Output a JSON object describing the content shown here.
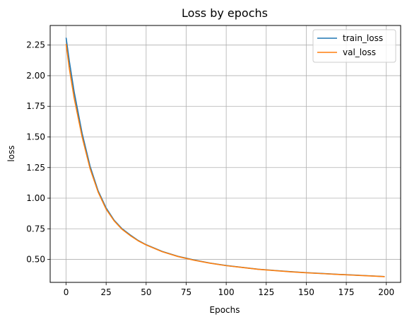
{
  "chart_data": {
    "type": "line",
    "title": "Loss by epochs",
    "xlabel": "Epochs",
    "ylabel": "loss",
    "xlim": [
      -9.95,
      208.95
    ],
    "ylim": [
      0.3125,
      2.41
    ],
    "x_ticks": [
      0,
      25,
      50,
      75,
      100,
      125,
      150,
      175,
      200
    ],
    "x_tick_labels": [
      "0",
      "25",
      "50",
      "75",
      "100",
      "125",
      "150",
      "175",
      "200"
    ],
    "y_ticks": [
      0.5,
      0.75,
      1.0,
      1.25,
      1.5,
      1.75,
      2.0,
      2.25
    ],
    "y_tick_labels": [
      "0.50",
      "0.75",
      "1.00",
      "1.25",
      "1.50",
      "1.75",
      "2.00",
      "2.25"
    ],
    "grid": true,
    "legend_position": "top-right",
    "series": [
      {
        "name": "train_loss",
        "color": "#1f77b4",
        "x": [
          0,
          2,
          5,
          10,
          15,
          20,
          25,
          30,
          35,
          40,
          45,
          50,
          60,
          70,
          75,
          80,
          90,
          100,
          110,
          120,
          125,
          130,
          140,
          150,
          160,
          170,
          175,
          180,
          190,
          199
        ],
        "values": [
          2.31,
          2.12,
          1.87,
          1.53,
          1.26,
          1.06,
          0.92,
          0.82,
          0.75,
          0.7,
          0.655,
          0.62,
          0.565,
          0.525,
          0.51,
          0.495,
          0.47,
          0.45,
          0.435,
          0.42,
          0.415,
          0.41,
          0.4,
          0.392,
          0.385,
          0.378,
          0.375,
          0.372,
          0.366,
          0.36
        ]
      },
      {
        "name": "val_loss",
        "color": "#ff7f0e",
        "x": [
          0,
          2,
          5,
          10,
          15,
          20,
          25,
          30,
          35,
          40,
          45,
          50,
          60,
          70,
          75,
          80,
          90,
          100,
          110,
          120,
          125,
          130,
          140,
          150,
          160,
          170,
          175,
          180,
          190,
          199
        ],
        "values": [
          2.26,
          2.06,
          1.82,
          1.5,
          1.24,
          1.05,
          0.91,
          0.815,
          0.745,
          0.695,
          0.652,
          0.618,
          0.563,
          0.523,
          0.508,
          0.493,
          0.469,
          0.449,
          0.434,
          0.419,
          0.414,
          0.409,
          0.399,
          0.391,
          0.384,
          0.377,
          0.374,
          0.371,
          0.365,
          0.359
        ]
      }
    ]
  }
}
